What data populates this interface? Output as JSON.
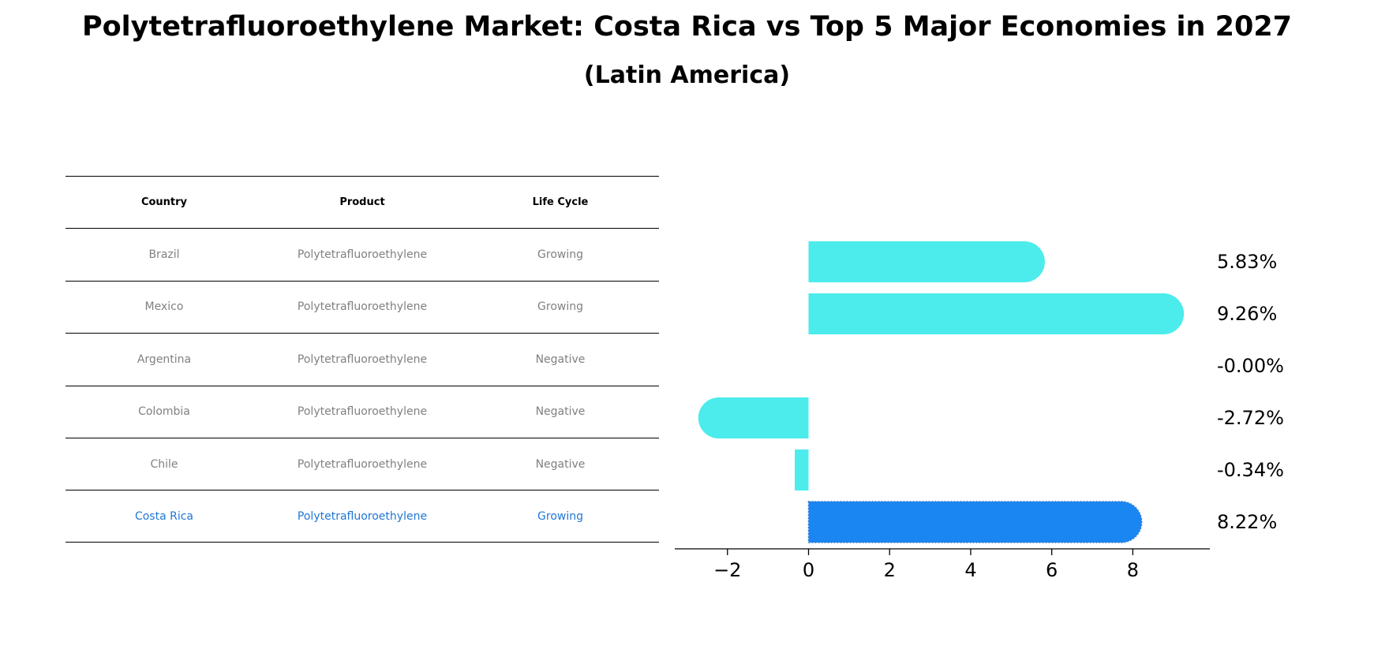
{
  "title": "Polytetrafluoroethylene Market: Costa Rica vs Top 5 Major Economies in 2027",
  "subtitle": "(Latin America)",
  "table": {
    "headers": [
      "Country",
      "Product",
      "Life Cycle"
    ],
    "rows": [
      [
        "Brazil",
        "Polytetrafluoroethylene",
        "Growing"
      ],
      [
        "Mexico",
        "Polytetrafluoroethylene",
        "Growing"
      ],
      [
        "Argentina",
        "Polytetrafluoroethylene",
        "Negative"
      ],
      [
        "Colombia",
        "Polytetrafluoroethylene",
        "Negative"
      ],
      [
        "Chile",
        "Polytetrafluoroethylene",
        "Negative"
      ],
      [
        "Costa Rica",
        "Polytetrafluoroethylene",
        "Growing"
      ]
    ]
  },
  "colors": {
    "bar": "#4beceb",
    "highlight_bar": "#1a86f2",
    "highlight_text": "#1f77d6",
    "table_text": "#808080"
  },
  "chart_data": {
    "type": "bar",
    "orientation": "horizontal",
    "categories": [
      "Brazil",
      "Mexico",
      "Argentina",
      "Colombia",
      "Chile",
      "Costa Rica"
    ],
    "values": [
      5.83,
      9.26,
      -0.0,
      -2.72,
      -0.34,
      8.22
    ],
    "value_labels": [
      "5.83%",
      "9.26%",
      "-0.00%",
      "-2.72%",
      "-0.34%",
      "8.22%"
    ],
    "highlight": "Costa Rica",
    "xlim": [
      -3.3,
      9.9
    ],
    "xticks": [
      -2,
      0,
      2,
      4,
      6,
      8
    ],
    "xtick_labels": [
      "−2",
      "0",
      "2",
      "4",
      "6",
      "8"
    ],
    "grid": false
  }
}
